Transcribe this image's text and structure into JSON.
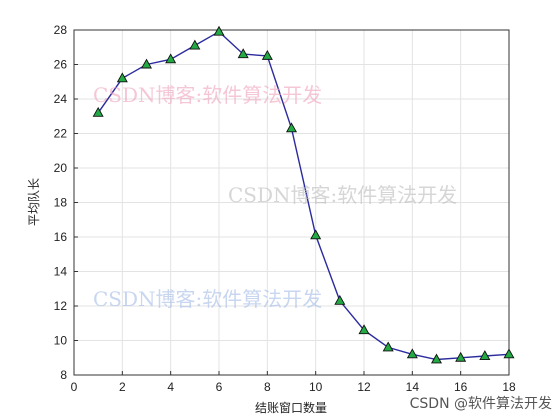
{
  "chart_data": {
    "type": "line",
    "title": "",
    "xlabel": "结账窗口数量",
    "ylabel": "平均队长",
    "xlim": [
      0,
      18
    ],
    "ylim": [
      8,
      28
    ],
    "xticks": [
      0,
      2,
      4,
      6,
      8,
      10,
      12,
      14,
      16,
      18
    ],
    "yticks": [
      8,
      10,
      12,
      14,
      16,
      18,
      20,
      22,
      24,
      26,
      28
    ],
    "grid": true,
    "legend": "none",
    "series": [
      {
        "x": [
          1,
          2,
          3,
          4,
          5,
          6,
          7,
          8,
          9,
          10,
          11,
          12,
          13,
          14,
          15,
          16,
          17,
          18
        ],
        "y": [
          23.2,
          25.2,
          26.0,
          26.3,
          27.1,
          27.9,
          26.6,
          26.5,
          22.3,
          16.1,
          12.3,
          10.6,
          9.6,
          9.2,
          8.9,
          9.0,
          9.1,
          9.2
        ],
        "line_color": "#2b2b9e",
        "marker": "triangle",
        "marker_color": "#22aa44"
      }
    ]
  },
  "watermarks": [
    {
      "text": "CSDN博客:软件算法开发",
      "color": "#f0a6bc"
    },
    {
      "text": "CSDN博客:软件算法开发",
      "color": "#bdbdbd"
    },
    {
      "text": "CSDN博客:软件算法开发",
      "color": "#a7bde8"
    }
  ],
  "credit": "CSDN @软件算法开发"
}
